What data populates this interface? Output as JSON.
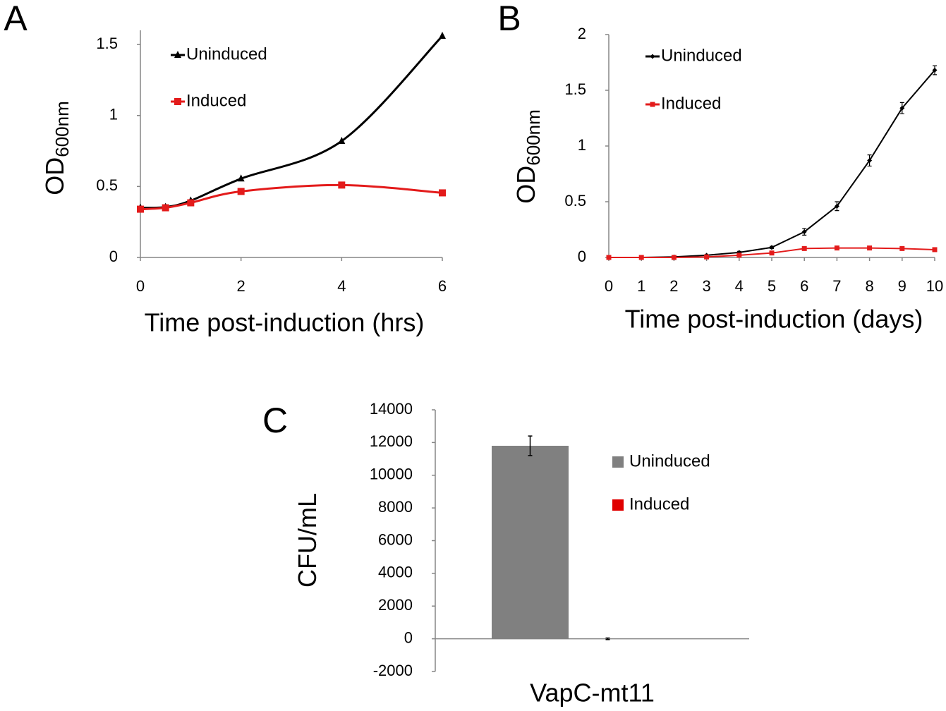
{
  "chart_data": [
    {
      "type": "line",
      "label": "A",
      "xlabel": "Time post-induction (hrs)",
      "ylabel": "OD",
      "ylabel_subscript": "600nm",
      "x": [
        0,
        0.5,
        1,
        2,
        4,
        6
      ],
      "xlim": [
        0,
        6
      ],
      "xticks": [
        0,
        2,
        4,
        6
      ],
      "ylim": [
        0,
        1.6
      ],
      "yticks": [
        0,
        0.5,
        1,
        1.5
      ],
      "smooth": true,
      "series": [
        {
          "name": "Uninduced",
          "color": "#000000",
          "marker": "triangle",
          "values": [
            0.35,
            0.355,
            0.4,
            0.555,
            0.82,
            1.56
          ]
        },
        {
          "name": "Induced",
          "color": "#e31b1b",
          "marker": "square",
          "values": [
            0.34,
            0.35,
            0.385,
            0.465,
            0.51,
            0.455
          ]
        }
      ]
    },
    {
      "type": "line",
      "label": "B",
      "xlabel": "Time post-induction (days)",
      "ylabel": "OD",
      "ylabel_subscript": "600nm",
      "x": [
        0,
        1,
        2,
        3,
        4,
        5,
        6,
        7,
        8,
        9,
        10
      ],
      "xlim": [
        0,
        10
      ],
      "xticks": [
        0,
        1,
        2,
        3,
        4,
        5,
        6,
        7,
        8,
        9,
        10
      ],
      "ylim": [
        0,
        2
      ],
      "yticks": [
        0,
        0.5,
        1,
        1.5,
        2
      ],
      "smooth": false,
      "series": [
        {
          "name": "Uninduced",
          "color": "#000000",
          "marker": "diamond",
          "values": [
            0,
            0,
            0.005,
            0.02,
            0.045,
            0.09,
            0.23,
            0.46,
            0.87,
            1.34,
            1.68
          ],
          "errors": [
            0,
            0,
            0,
            0.005,
            0.01,
            0.01,
            0.03,
            0.04,
            0.05,
            0.05,
            0.04
          ]
        },
        {
          "name": "Induced",
          "color": "#e31b1b",
          "marker": "square",
          "values": [
            0,
            0,
            0,
            0.005,
            0.02,
            0.04,
            0.08,
            0.085,
            0.085,
            0.08,
            0.07
          ]
        }
      ]
    },
    {
      "type": "bar",
      "label": "C",
      "ylabel": "CFU/mL",
      "categories": [
        "VapC-mt11"
      ],
      "ylim": [
        -2000,
        14000
      ],
      "yticks": [
        -2000,
        0,
        2000,
        4000,
        6000,
        8000,
        10000,
        12000,
        14000
      ],
      "series": [
        {
          "name": "Uninduced",
          "color": "#808080",
          "values": [
            11800
          ],
          "errors": [
            600
          ]
        },
        {
          "name": "Induced",
          "color": "#e00000",
          "values": [
            0
          ],
          "errors": [
            50
          ]
        }
      ]
    }
  ]
}
